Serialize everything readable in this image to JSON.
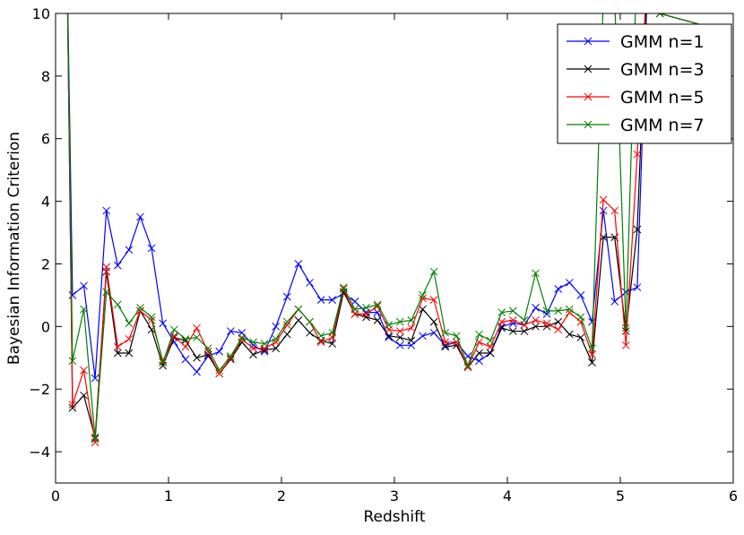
{
  "chart_data": {
    "type": "line",
    "title": "",
    "xlabel": "Redshift",
    "ylabel": "Bayesian Information Criterion",
    "xlim": [
      0,
      6
    ],
    "ylim": [
      -5,
      10
    ],
    "xticks": [
      "0",
      "1",
      "2",
      "3",
      "4",
      "5",
      "6"
    ],
    "yticks": [
      "−4",
      "−2",
      "0",
      "2",
      "4",
      "6",
      "8",
      "10"
    ],
    "grid": false,
    "legend_position": "top-right",
    "x": [
      0.15,
      0.25,
      0.35,
      0.45,
      0.55,
      0.65,
      0.75,
      0.85,
      0.95,
      1.05,
      1.15,
      1.25,
      1.35,
      1.45,
      1.55,
      1.65,
      1.75,
      1.85,
      1.95,
      2.05,
      2.15,
      2.25,
      2.35,
      2.45,
      2.55,
      2.65,
      2.75,
      2.85,
      2.95,
      3.05,
      3.15,
      3.25,
      3.35,
      3.45,
      3.55,
      3.65,
      3.75,
      3.85,
      3.95,
      4.05,
      4.15,
      4.25,
      4.35,
      4.45,
      4.55,
      4.65,
      4.75,
      4.85,
      4.95,
      5.05,
      5.15,
      5.25,
      5.35,
      5.95
    ],
    "series": [
      {
        "name": "GMM n=1",
        "color": "#0000ff",
        "lead": [
          0.1,
          12
        ],
        "values": [
          1.0,
          1.3,
          -1.65,
          3.7,
          1.95,
          2.45,
          3.5,
          2.5,
          0.1,
          -0.5,
          -1.05,
          -1.45,
          -0.95,
          -0.8,
          -0.15,
          -0.2,
          -0.6,
          -0.8,
          0.0,
          0.95,
          2.0,
          1.4,
          0.85,
          0.85,
          1.05,
          0.8,
          0.45,
          0.45,
          -0.35,
          -0.6,
          -0.6,
          -0.3,
          -0.2,
          -0.6,
          -0.5,
          -0.95,
          -1.1,
          -0.85,
          0.0,
          0.1,
          0.05,
          0.6,
          0.4,
          1.2,
          1.4,
          1.0,
          0.15,
          3.7,
          0.8,
          1.1,
          1.25,
          12,
          10,
          12
        ]
      },
      {
        "name": "GMM n=3",
        "color": "#000000",
        "lead": [
          0.1,
          12
        ],
        "values": [
          -2.6,
          -2.2,
          -3.55,
          1.75,
          -0.85,
          -0.85,
          0.5,
          -0.1,
          -1.25,
          -0.35,
          -0.45,
          -1.0,
          -0.9,
          -1.5,
          -1.05,
          -0.5,
          -0.9,
          -0.75,
          -0.7,
          -0.25,
          0.2,
          -0.2,
          -0.45,
          -0.55,
          1.1,
          0.4,
          0.3,
          0.2,
          -0.3,
          -0.35,
          -0.45,
          0.55,
          0.15,
          -0.65,
          -0.6,
          -1.3,
          -0.85,
          -0.85,
          -0.05,
          -0.15,
          -0.15,
          0.0,
          0.0,
          0.15,
          -0.25,
          -0.35,
          -1.15,
          2.85,
          2.85,
          -0.15,
          3.1,
          12,
          10,
          9.4
        ]
      },
      {
        "name": "GMM n=5",
        "color": "#ff0000",
        "lead": [
          0.1,
          12
        ],
        "values": [
          -2.5,
          -1.4,
          -3.7,
          1.9,
          -0.65,
          -0.4,
          0.5,
          0.2,
          -1.1,
          -0.3,
          -0.65,
          -0.05,
          -0.8,
          -1.5,
          -1.0,
          -0.4,
          -0.7,
          -0.7,
          -0.5,
          0.05,
          0.55,
          0.15,
          -0.5,
          -0.35,
          1.2,
          0.4,
          0.4,
          0.65,
          -0.1,
          -0.15,
          -0.05,
          0.9,
          0.85,
          -0.5,
          -0.5,
          -1.3,
          -0.5,
          -0.65,
          0.15,
          0.2,
          0.05,
          0.2,
          0.1,
          -0.1,
          0.45,
          0.15,
          -0.9,
          4.05,
          3.7,
          -0.6,
          5.5,
          12,
          10,
          9.4
        ]
      },
      {
        "name": "GMM n=7",
        "color": "#008000",
        "lead": [
          0.1,
          12
        ],
        "values": [
          -1.1,
          0.55,
          -3.6,
          1.1,
          0.7,
          0.1,
          0.6,
          0.3,
          -1.15,
          -0.1,
          -0.4,
          -0.35,
          -0.7,
          -1.4,
          -0.95,
          -0.35,
          -0.5,
          -0.55,
          -0.4,
          0.15,
          0.55,
          0.15,
          -0.3,
          -0.2,
          1.25,
          0.55,
          0.6,
          0.7,
          0.05,
          0.15,
          0.2,
          1.0,
          1.75,
          -0.2,
          -0.3,
          -1.25,
          -0.25,
          -0.45,
          0.45,
          0.5,
          0.2,
          1.7,
          0.5,
          0.5,
          0.55,
          0.3,
          -0.7,
          10.5,
          10.5,
          -0.05,
          12,
          12,
          10,
          9.4
        ]
      }
    ]
  }
}
